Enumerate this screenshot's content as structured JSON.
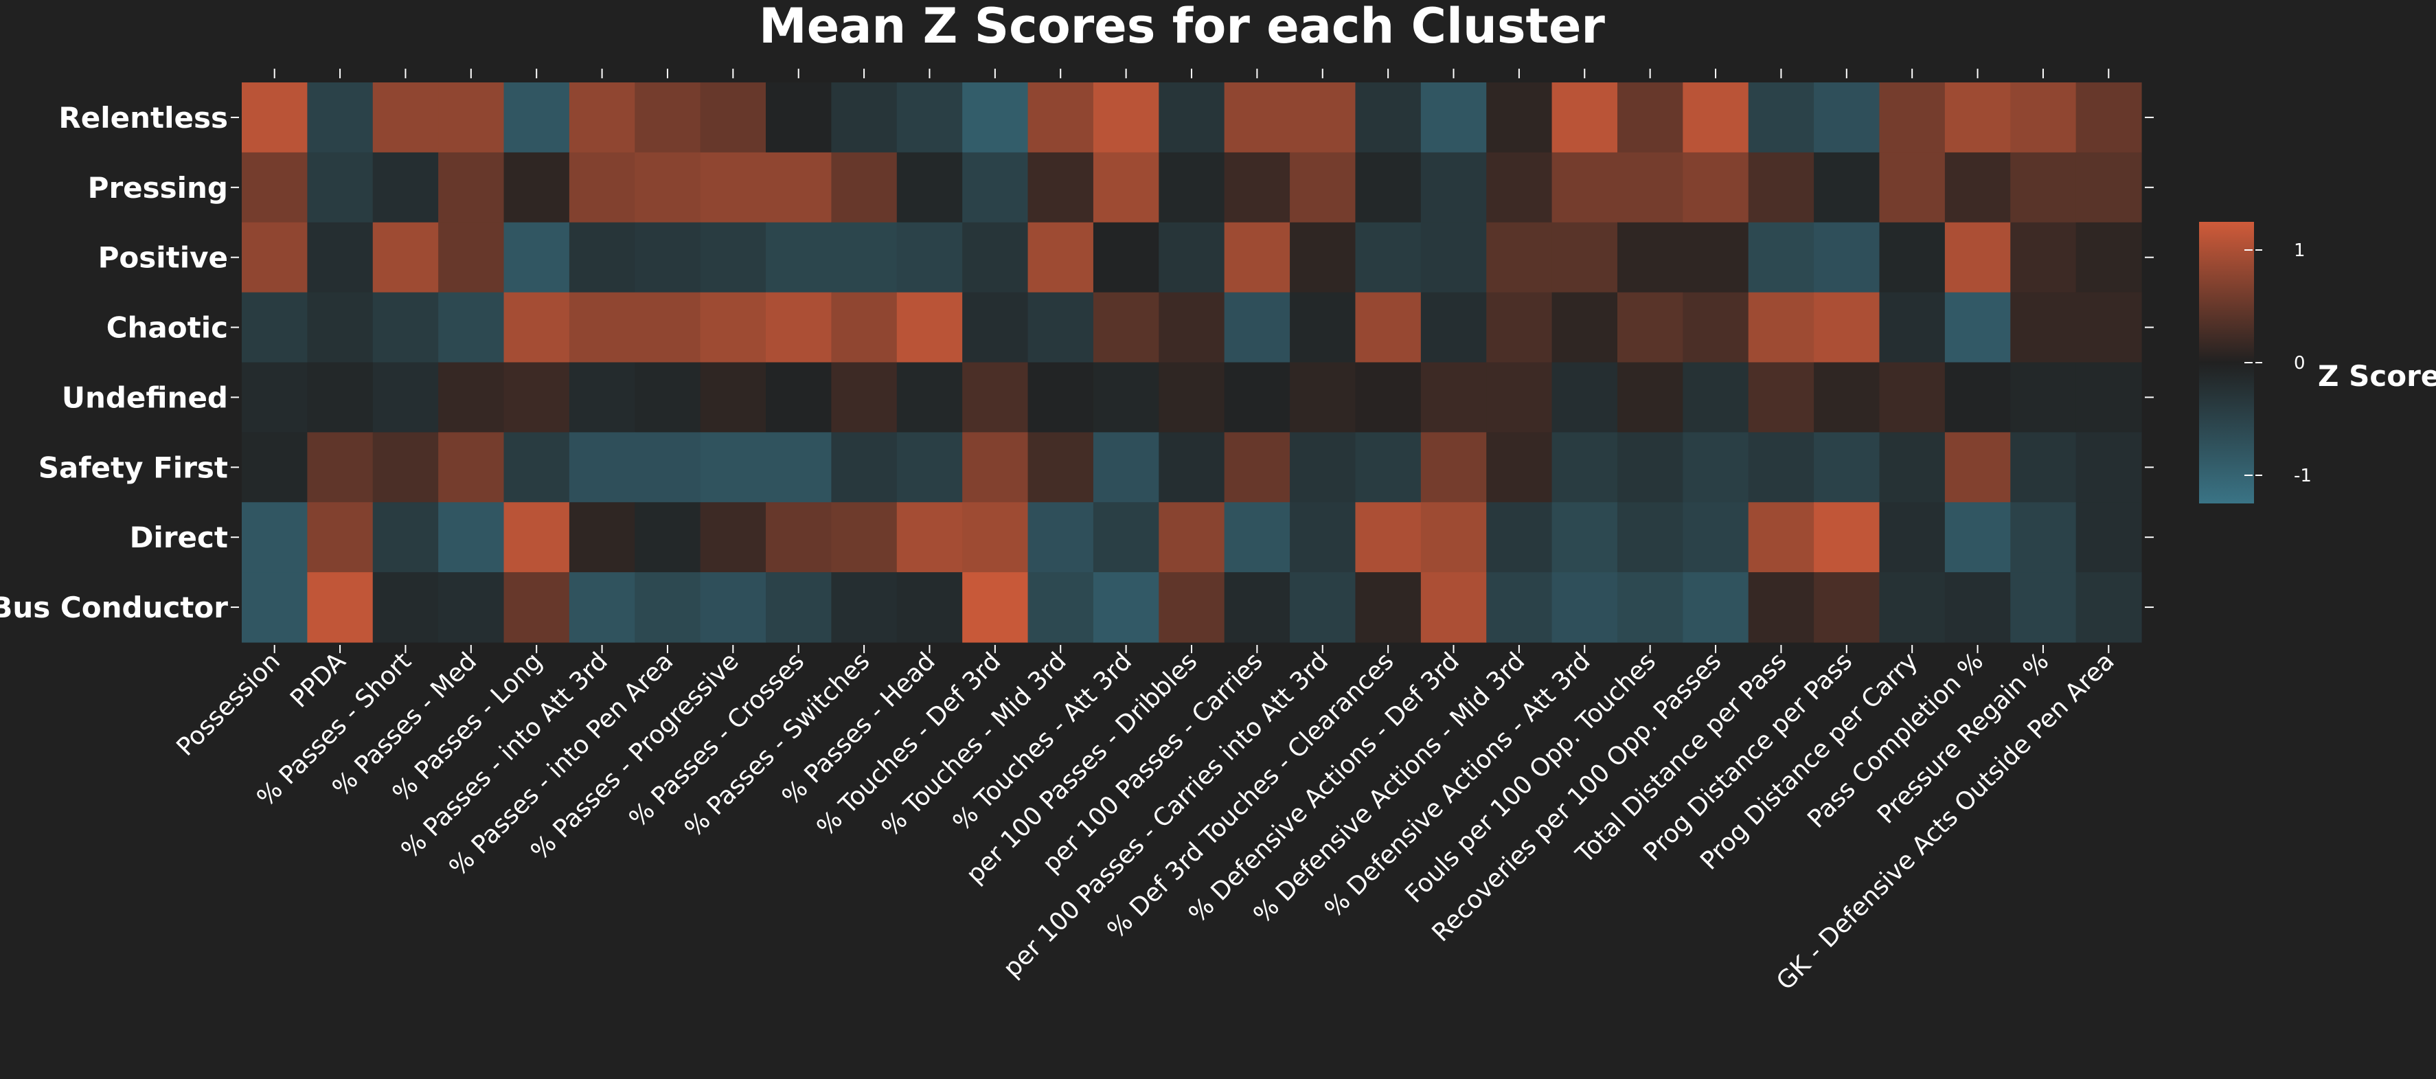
{
  "chart_data": {
    "type": "heatmap",
    "title": "Mean Z Scores for each Cluster",
    "rows": [
      "Relentless",
      "Pressing",
      "Positive",
      "Chaotic",
      "Undefined",
      "Safety First",
      "Direct",
      "Bus Conductor"
    ],
    "columns": [
      "Possession",
      "PPDA",
      "% Passes - Short",
      "% Passes - Med",
      "% Passes - Long",
      "% Passes - into Att 3rd",
      "% Passes - into Pen Area",
      "% Passes - Progressive",
      "% Passes - Crosses",
      "% Passes - Switches",
      "% Passes - Head",
      "% Touches - Def 3rd",
      "% Touches - Mid 3rd",
      "% Touches - Att 3rd",
      "per 100 Passes - Dribbles",
      "per 100 Passes - Carries",
      "per 100 Passes - Carries into Att 3rd",
      "% Def 3rd Touches - Clearances",
      "% Defensive Actions - Def 3rd",
      "% Defensive Actions - Mid 3rd",
      "% Defensive Actions - Att 3rd",
      "Fouls per 100 Opp. Touches",
      "Recoveries per 100 Opp. Passes",
      "Total Distance per Pass",
      "Prog Distance per Pass",
      "Prog Distance per Carry",
      "Pass Completion %",
      "Pressure Regain %",
      "GK - Defensive Acts Outside Pen Area"
    ],
    "values": [
      [
        1.1,
        -0.5,
        0.8,
        0.8,
        -0.8,
        0.8,
        0.6,
        0.5,
        -0.05,
        -0.3,
        -0.45,
        -0.9,
        0.8,
        1.1,
        -0.3,
        0.8,
        0.8,
        -0.3,
        -0.8,
        0.1,
        1.1,
        0.5,
        1.1,
        -0.5,
        -0.7,
        0.6,
        0.9,
        0.8,
        0.5
      ],
      [
        0.6,
        -0.4,
        -0.2,
        0.5,
        0.1,
        0.7,
        0.75,
        0.8,
        0.8,
        0.5,
        -0.1,
        -0.5,
        0.2,
        0.9,
        -0.1,
        0.2,
        0.6,
        -0.1,
        -0.35,
        0.2,
        0.6,
        0.6,
        0.7,
        0.3,
        -0.1,
        0.6,
        0.2,
        0.4,
        0.4
      ],
      [
        0.8,
        -0.2,
        0.9,
        0.5,
        -0.8,
        -0.3,
        -0.35,
        -0.4,
        -0.55,
        -0.55,
        -0.5,
        -0.3,
        0.9,
        -0.05,
        -0.3,
        0.9,
        0.1,
        -0.4,
        -0.35,
        0.4,
        0.4,
        0.1,
        0.1,
        -0.6,
        -0.7,
        -0.1,
        1.0,
        0.2,
        0.1
      ],
      [
        -0.4,
        -0.25,
        -0.4,
        -0.6,
        0.95,
        0.8,
        0.8,
        0.9,
        1.0,
        0.8,
        1.1,
        -0.2,
        -0.35,
        0.4,
        0.2,
        -0.7,
        -0.1,
        0.85,
        -0.2,
        0.3,
        0.1,
        0.4,
        0.3,
        0.9,
        1.0,
        -0.2,
        -0.85,
        0.15,
        0.15
      ],
      [
        -0.15,
        -0.1,
        -0.2,
        0.15,
        0.2,
        -0.15,
        -0.1,
        0.1,
        -0.05,
        0.2,
        -0.1,
        0.3,
        -0.05,
        -0.1,
        0.1,
        -0.05,
        0.1,
        0.05,
        0.2,
        0.2,
        -0.2,
        0.1,
        -0.25,
        0.3,
        0.1,
        0.2,
        -0.05,
        -0.1,
        -0.1
      ],
      [
        -0.1,
        0.45,
        0.3,
        0.6,
        -0.4,
        -0.7,
        -0.7,
        -0.75,
        -0.75,
        -0.35,
        -0.45,
        0.7,
        0.25,
        -0.7,
        -0.2,
        0.5,
        -0.3,
        -0.4,
        0.6,
        0.15,
        -0.4,
        -0.3,
        -0.45,
        -0.35,
        -0.5,
        -0.25,
        0.7,
        -0.3,
        -0.2
      ],
      [
        -0.8,
        0.7,
        -0.4,
        -0.8,
        1.1,
        0.1,
        -0.1,
        0.2,
        0.5,
        0.55,
        0.95,
        0.9,
        -0.7,
        -0.45,
        0.75,
        -0.75,
        -0.35,
        1.0,
        0.9,
        -0.35,
        -0.6,
        -0.4,
        -0.5,
        0.9,
        1.15,
        -0.2,
        -0.8,
        -0.5,
        -0.2
      ],
      [
        -0.8,
        1.15,
        -0.15,
        -0.2,
        0.5,
        -0.75,
        -0.6,
        -0.7,
        -0.5,
        -0.2,
        -0.15,
        1.2,
        -0.6,
        -0.85,
        0.45,
        -0.15,
        -0.45,
        0.1,
        1.0,
        -0.5,
        -0.7,
        -0.6,
        -0.75,
        0.15,
        0.3,
        -0.25,
        -0.2,
        -0.5,
        -0.3
      ]
    ],
    "color_scale": {
      "low": "#3A7486",
      "mid": "#212121",
      "high": "#CF5B3A",
      "range": [
        -1.25,
        1.25
      ]
    },
    "colorbar": {
      "title": "Z Score",
      "ticks": [
        1,
        0,
        -1
      ],
      "tick_labels": [
        "1",
        "0",
        "-1"
      ]
    }
  }
}
